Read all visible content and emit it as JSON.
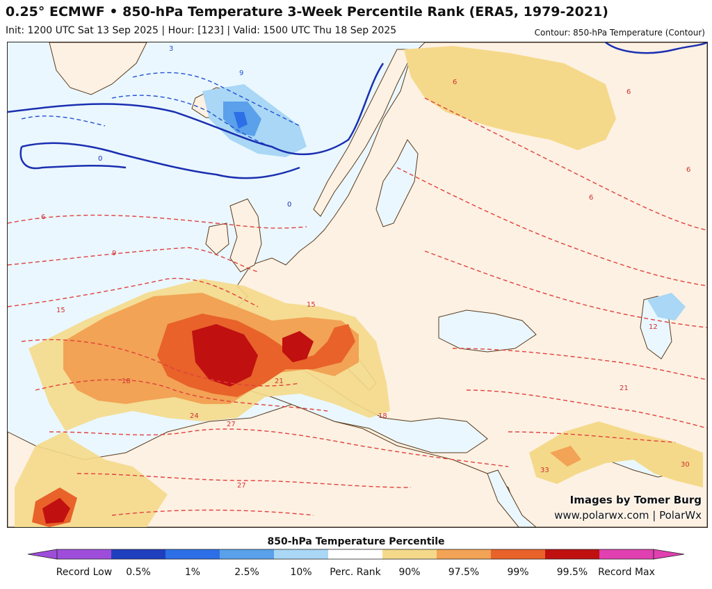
{
  "header": {
    "title": "0.25° ECMWF • 850-hPa Temperature 3-Week Percentile Rank (ERA5, 1979-2021)",
    "subtitle": "Init: 1200 UTC Sat 13 Sep 2025 | Hour: [123] | Valid: 1500 UTC Thu 18 Sep 2025",
    "contour_note": "Contour: 850-hPa Temperature (Contour)"
  },
  "credits": {
    "line1": "Images by Tomer Burg",
    "line2": "www.polarwx.com | PolarWx"
  },
  "colorbar": {
    "title": "850-hPa Temperature Percentile",
    "labels": [
      "Record Low",
      "0.5%",
      "1%",
      "2.5%",
      "10%",
      "Perc. Rank",
      "90%",
      "97.5%",
      "99%",
      "99.5%",
      "Record Max"
    ],
    "bins": [
      "#9e4ddb",
      "#1f3fbf",
      "#2d6fe6",
      "#5aa0ea",
      "#a9d7f5",
      "#ffffff",
      "#f5d98a",
      "#f2a355",
      "#e8622a",
      "#c01010",
      "#e040b0"
    ]
  },
  "map": {
    "colors": {
      "ocean": "#eaf7ff",
      "land": "#fdf1e3",
      "contour_warm": "#e0403c",
      "contour_cold": "#2050d0",
      "zero_line": "#1a2fb0"
    },
    "contour_labels": [
      "3",
      "9",
      "0",
      "0",
      "6",
      "9",
      "6",
      "6",
      "6",
      "15",
      "18",
      "21",
      "24",
      "27",
      "12",
      "15",
      "18",
      "21",
      "27",
      "33",
      "30",
      "6"
    ]
  }
}
